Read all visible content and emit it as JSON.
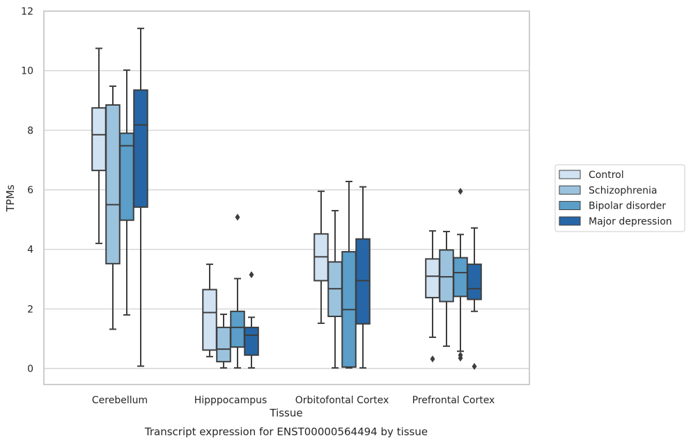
{
  "chart_data": {
    "type": "box",
    "caption": "Transcript expression for ENST00000564494 by tissue",
    "xlabel": "Tissue",
    "ylabel": "TPMs",
    "ylim": [
      -0.5,
      12
    ],
    "yticks": [
      0,
      2,
      4,
      6,
      8,
      10,
      12
    ],
    "grid": true,
    "legend_position": "right",
    "categories": [
      "Cerebellum",
      "Hipppocampus",
      "Orbitofontal Cortex",
      "Prefrontal Cortex"
    ],
    "series": [
      {
        "name": "Control",
        "color": "#d1e2f2",
        "boxes": [
          {
            "whislo": 4.2,
            "q1": 6.65,
            "med": 7.85,
            "q3": 8.75,
            "whishi": 10.75,
            "fliers": []
          },
          {
            "whislo": 0.4,
            "q1": 0.62,
            "med": 1.88,
            "q3": 2.65,
            "whishi": 3.5,
            "fliers": []
          },
          {
            "whislo": 1.52,
            "q1": 2.95,
            "med": 3.75,
            "q3": 4.52,
            "whishi": 5.95,
            "fliers": []
          },
          {
            "whislo": 1.05,
            "q1": 2.38,
            "med": 3.1,
            "q3": 3.68,
            "whishi": 4.62,
            "fliers": [
              0.32
            ]
          }
        ]
      },
      {
        "name": "Schizophrenia",
        "color": "#9cc3de",
        "boxes": [
          {
            "whislo": 1.32,
            "q1": 3.52,
            "med": 5.5,
            "q3": 8.85,
            "whishi": 9.48,
            "fliers": []
          },
          {
            "whislo": 0.02,
            "q1": 0.23,
            "med": 0.65,
            "q3": 1.38,
            "whishi": 1.82,
            "fliers": []
          },
          {
            "whislo": 0.02,
            "q1": 1.75,
            "med": 2.68,
            "q3": 3.58,
            "whishi": 5.3,
            "fliers": []
          },
          {
            "whislo": 0.75,
            "q1": 2.25,
            "med": 3.08,
            "q3": 3.98,
            "whishi": 4.6,
            "fliers": []
          }
        ]
      },
      {
        "name": "Bipolar disorder",
        "color": "#5a9ec9",
        "boxes": [
          {
            "whislo": 1.8,
            "q1": 4.98,
            "med": 7.48,
            "q3": 7.9,
            "whishi": 10.02,
            "fliers": []
          },
          {
            "whislo": 0.02,
            "q1": 0.72,
            "med": 1.38,
            "q3": 1.92,
            "whishi": 3.02,
            "fliers": [
              5.08
            ]
          },
          {
            "whislo": 0.02,
            "q1": 0.05,
            "med": 1.98,
            "q3": 3.92,
            "whishi": 6.28,
            "fliers": []
          },
          {
            "whislo": 0.58,
            "q1": 2.42,
            "med": 3.22,
            "q3": 3.72,
            "whishi": 4.5,
            "fliers": [
              5.95,
              0.45,
              0.35
            ]
          }
        ]
      },
      {
        "name": "Major depression",
        "color": "#2666a6",
        "boxes": [
          {
            "whislo": 0.08,
            "q1": 5.42,
            "med": 8.18,
            "q3": 9.35,
            "whishi": 11.42,
            "fliers": []
          },
          {
            "whislo": 0.02,
            "q1": 0.45,
            "med": 1.12,
            "q3": 1.38,
            "whishi": 1.72,
            "fliers": [
              3.15
            ]
          },
          {
            "whislo": 0.02,
            "q1": 1.5,
            "med": 2.95,
            "q3": 4.35,
            "whishi": 6.1,
            "fliers": []
          },
          {
            "whislo": 1.92,
            "q1": 2.32,
            "med": 2.68,
            "q3": 3.5,
            "whishi": 4.72,
            "fliers": [
              0.07
            ]
          }
        ]
      }
    ]
  }
}
